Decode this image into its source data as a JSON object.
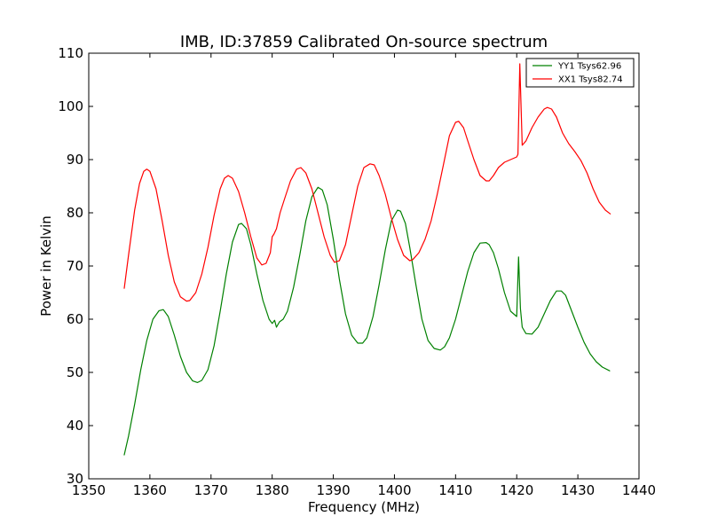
{
  "chart_data": {
    "type": "line",
    "title": "IMB, ID:37859 Calibrated On-source spectrum",
    "xlabel": "Frequency (MHz)",
    "ylabel": "Power in Kelvin",
    "xlim": [
      1350,
      1440
    ],
    "ylim": [
      30,
      110
    ],
    "xticks": [
      1350,
      1360,
      1370,
      1380,
      1390,
      1400,
      1410,
      1420,
      1430,
      1440
    ],
    "yticks": [
      30,
      40,
      50,
      60,
      70,
      80,
      90,
      100,
      110
    ],
    "grid": false,
    "legend_position": "top-right",
    "series": [
      {
        "name": "YY1 Tsys62.96",
        "color": "#008000",
        "x": [
          1355.8,
          1356.5,
          1357.5,
          1358.5,
          1359.5,
          1360.5,
          1361.5,
          1362.2,
          1363.0,
          1364.0,
          1365.0,
          1366.0,
          1367.0,
          1367.8,
          1368.5,
          1369.5,
          1370.5,
          1371.5,
          1372.5,
          1373.5,
          1374.5,
          1375.0,
          1375.8,
          1376.5,
          1377.5,
          1378.5,
          1379.5,
          1380.0,
          1380.4,
          1380.7,
          1381.2,
          1381.8,
          1382.5,
          1383.5,
          1384.5,
          1385.5,
          1386.5,
          1387.5,
          1388.2,
          1389.0,
          1390.0,
          1391.0,
          1392.0,
          1393.0,
          1394.0,
          1394.8,
          1395.5,
          1396.5,
          1397.5,
          1398.5,
          1399.5,
          1400.5,
          1401.0,
          1401.8,
          1402.5,
          1403.5,
          1404.5,
          1405.5,
          1406.5,
          1407.5,
          1408.2,
          1409.0,
          1410.0,
          1411.0,
          1412.0,
          1413.0,
          1414.0,
          1415.0,
          1415.5,
          1416.2,
          1417.0,
          1418.0,
          1419.0,
          1420.0,
          1420.3,
          1420.6,
          1420.9,
          1421.5,
          1422.5,
          1423.5,
          1424.5,
          1425.5,
          1426.5,
          1427.3,
          1428.0,
          1429.0,
          1430.0,
          1431.0,
          1432.0,
          1433.0,
          1434.0,
          1435.2
        ],
        "values": [
          34.5,
          38.0,
          44.0,
          50.5,
          56.0,
          60.0,
          61.6,
          61.8,
          60.5,
          57.0,
          53.0,
          50.0,
          48.4,
          48.1,
          48.5,
          50.5,
          55.0,
          61.5,
          68.5,
          74.5,
          77.8,
          78.0,
          77.0,
          74.0,
          68.5,
          63.5,
          60.0,
          59.2,
          59.8,
          58.5,
          59.5,
          60.0,
          61.5,
          66.0,
          72.0,
          78.5,
          83.0,
          84.8,
          84.3,
          81.5,
          75.0,
          67.5,
          61.0,
          57.0,
          55.5,
          55.5,
          56.5,
          60.5,
          66.5,
          73.0,
          78.5,
          80.5,
          80.3,
          78.0,
          73.5,
          66.5,
          60.0,
          56.0,
          54.5,
          54.2,
          54.8,
          56.5,
          60.0,
          64.5,
          69.0,
          72.5,
          74.3,
          74.4,
          74.0,
          72.5,
          69.5,
          65.0,
          61.5,
          60.5,
          71.7,
          62.0,
          58.5,
          57.3,
          57.2,
          58.5,
          61.0,
          63.5,
          65.3,
          65.3,
          64.5,
          61.5,
          58.5,
          55.7,
          53.5,
          52.0,
          51.0,
          50.3
        ]
      },
      {
        "name": "XX1 Tsys82.74",
        "color": "#ff0000",
        "x": [
          1355.8,
          1356.5,
          1357.5,
          1358.3,
          1359.0,
          1359.5,
          1360.0,
          1361.0,
          1362.0,
          1363.0,
          1364.0,
          1365.0,
          1366.0,
          1366.5,
          1367.5,
          1368.5,
          1369.5,
          1370.5,
          1371.5,
          1372.2,
          1372.8,
          1373.5,
          1374.5,
          1375.5,
          1376.5,
          1377.5,
          1378.3,
          1379.0,
          1379.7,
          1380.0,
          1380.3,
          1380.7,
          1381.3,
          1382.0,
          1383.0,
          1384.0,
          1384.7,
          1385.5,
          1386.5,
          1387.5,
          1388.5,
          1389.5,
          1390.2,
          1391.0,
          1392.0,
          1393.0,
          1394.0,
          1395.0,
          1396.0,
          1396.7,
          1397.5,
          1398.5,
          1399.5,
          1400.5,
          1401.5,
          1402.5,
          1403.0,
          1404.0,
          1405.0,
          1406.0,
          1407.0,
          1408.0,
          1409.0,
          1410.0,
          1410.5,
          1411.3,
          1412.0,
          1413.0,
          1414.0,
          1415.0,
          1415.5,
          1416.2,
          1417.0,
          1418.0,
          1419.0,
          1420.0,
          1420.2,
          1420.5,
          1420.9,
          1421.5,
          1422.5,
          1423.5,
          1424.5,
          1425.0,
          1425.7,
          1426.5,
          1427.5,
          1428.5,
          1429.5,
          1430.5,
          1431.5,
          1432.5,
          1433.5,
          1434.5,
          1435.3
        ],
        "values": [
          65.8,
          72.0,
          80.5,
          85.5,
          87.8,
          88.2,
          87.8,
          84.5,
          78.5,
          72.0,
          67.0,
          64.2,
          63.4,
          63.5,
          65.0,
          68.5,
          73.5,
          79.5,
          84.5,
          86.5,
          87.0,
          86.5,
          84.0,
          80.0,
          75.5,
          71.5,
          70.2,
          70.5,
          72.5,
          75.5,
          76.0,
          77.0,
          80.0,
          82.5,
          86.0,
          88.2,
          88.5,
          87.5,
          84.5,
          80.0,
          75.5,
          72.0,
          70.7,
          71.0,
          74.0,
          79.5,
          85.0,
          88.5,
          89.2,
          89.0,
          87.0,
          83.5,
          79.0,
          75.0,
          72.0,
          71.0,
          71.2,
          72.5,
          75.0,
          78.5,
          83.5,
          89.0,
          94.5,
          97.0,
          97.2,
          96.0,
          93.5,
          90.0,
          87.0,
          86.0,
          86.0,
          87.0,
          88.5,
          89.5,
          90.0,
          90.5,
          91.0,
          108.0,
          92.7,
          93.5,
          96.0,
          98.0,
          99.5,
          99.8,
          99.5,
          98.0,
          95.0,
          93.0,
          91.5,
          89.8,
          87.5,
          84.5,
          82.0,
          80.5,
          79.8
        ]
      }
    ]
  }
}
